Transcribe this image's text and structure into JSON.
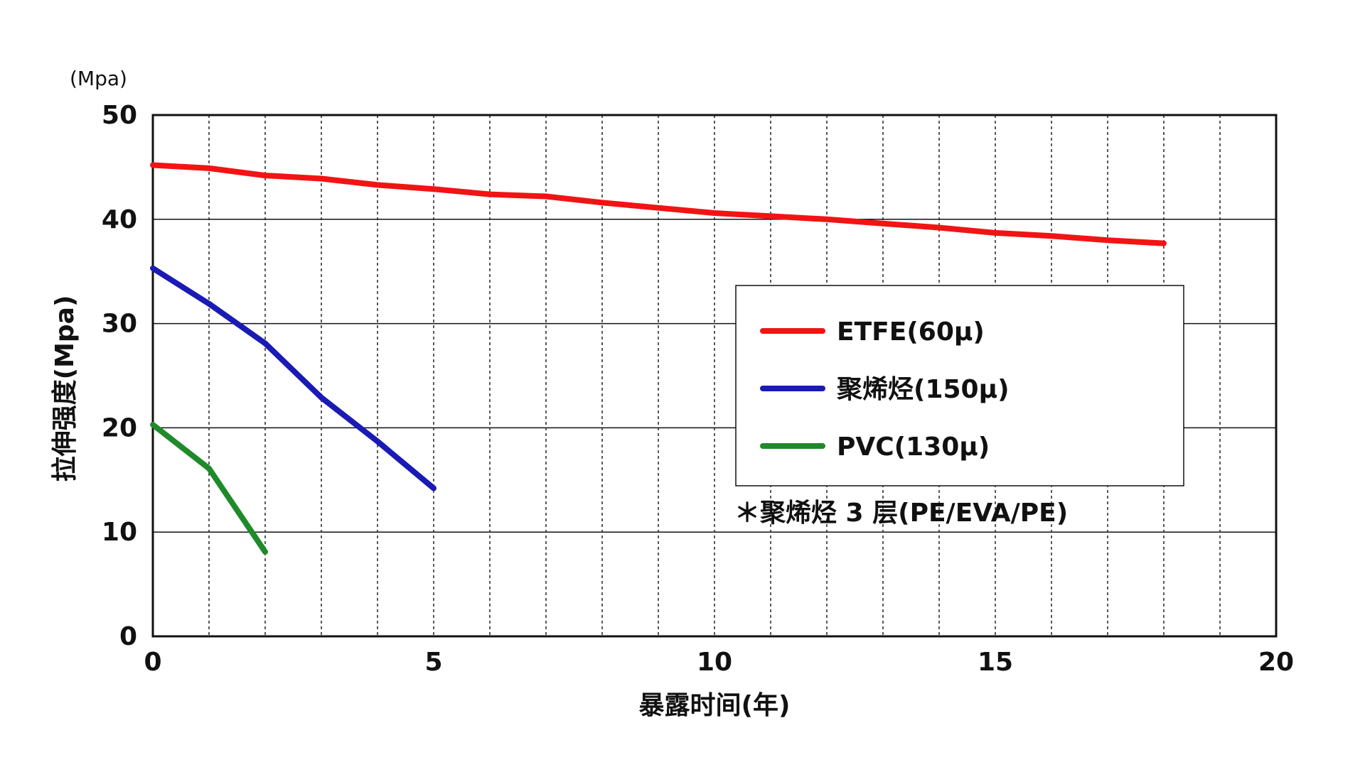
{
  "chart_data": {
    "type": "line",
    "y_unit": "(Mpa)",
    "xlabel": "暴露时间(年)",
    "ylabel": "拉伸强度(Mpa)",
    "xlim": [
      0,
      20
    ],
    "ylim": [
      0,
      50
    ],
    "x_ticks": [
      "0",
      "5",
      "10",
      "15",
      "20"
    ],
    "y_ticks": [
      "0",
      "10",
      "20",
      "30",
      "40",
      "50"
    ],
    "x_minor_step": 1,
    "grid": {
      "horizontal": "solid",
      "vertical": "dashed"
    },
    "legend_position": "right-center",
    "note": "＊聚烯烃 3 层(PE/EVA/PE)",
    "series": [
      {
        "name": "ETFE(60μ)",
        "color": "#f21414",
        "x": [
          0,
          1,
          2,
          3,
          4,
          5,
          6,
          7,
          8,
          9,
          10,
          11,
          12,
          13,
          14,
          15,
          16,
          17,
          18
        ],
        "y": [
          45.2,
          44.9,
          44.2,
          43.9,
          43.3,
          42.9,
          42.4,
          42.2,
          41.6,
          41.1,
          40.6,
          40.3,
          40.0,
          39.6,
          39.2,
          38.7,
          38.4,
          38.0,
          37.7
        ]
      },
      {
        "name": "聚烯烃(150μ)",
        "color": "#1a1ab4",
        "x": [
          0,
          1,
          2,
          3,
          4,
          5
        ],
        "y": [
          35.3,
          31.9,
          28.1,
          22.9,
          18.7,
          14.2
        ]
      },
      {
        "name": "PVC(130μ)",
        "color": "#1f8a2a",
        "x": [
          0,
          1,
          2
        ],
        "y": [
          20.3,
          16.1,
          8.1
        ]
      }
    ]
  }
}
